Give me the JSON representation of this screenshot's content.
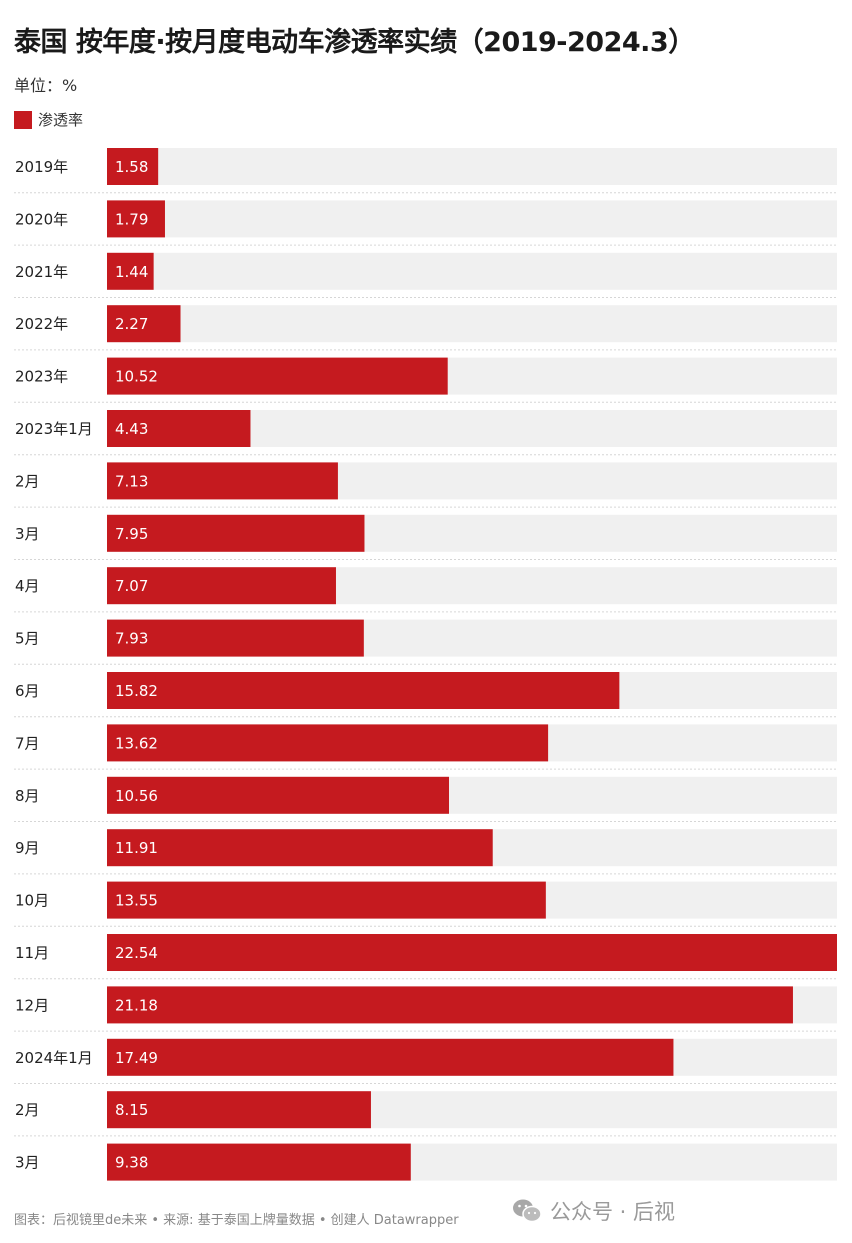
{
  "title": "泰国 按年度·按月度电动车渗透率实绩（2019-2024.3）",
  "unit": "单位：%",
  "footer": "图表：后视镜里de未来 • 来源: 基于泰国上牌量数据 • 创建人 Datawrapper",
  "watermark": "公众号 · 后视",
  "colors": {
    "bar": "#c51a1f",
    "track": "#f0f0f0",
    "divider": "#d6d6d6"
  },
  "chart_data": {
    "type": "bar",
    "orientation": "horizontal",
    "xlim": [
      0,
      22.54
    ],
    "legend": "top-left",
    "series": [
      {
        "name": "渗透率",
        "color": "#c51a1f"
      }
    ],
    "categories": [
      "2019年",
      "2020年",
      "2021年",
      "2022年",
      "2023年",
      "2023年1月",
      "2月",
      "3月",
      "4月",
      "5月",
      "6月",
      "7月",
      "8月",
      "9月",
      "10月",
      "11月",
      "12月",
      "2024年1月",
      "2月",
      "3月"
    ],
    "values": [
      1.58,
      1.79,
      1.44,
      2.27,
      10.52,
      4.43,
      7.13,
      7.95,
      7.07,
      7.93,
      15.82,
      13.62,
      10.56,
      11.91,
      13.55,
      22.54,
      21.18,
      17.49,
      8.15,
      9.38
    ],
    "value_labels": [
      "1.58",
      "1.79",
      "1.44",
      "2.27",
      "10.52",
      "4.43",
      "7.13",
      "7.95",
      "7.07",
      "7.93",
      "15.82",
      "13.62",
      "10.56",
      "11.91",
      "13.55",
      "22.54",
      "21.18",
      "17.49",
      "8.15",
      "9.38"
    ]
  }
}
